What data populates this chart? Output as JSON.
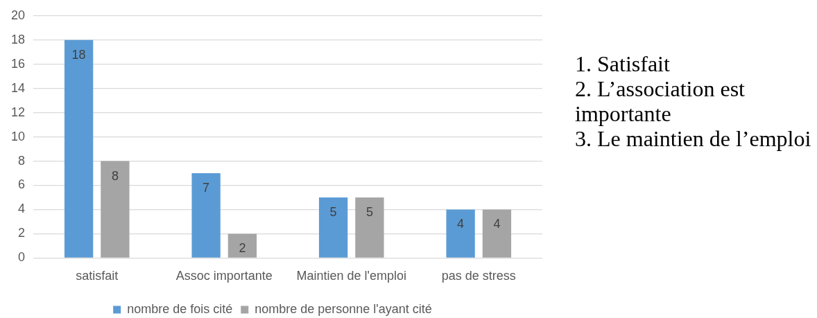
{
  "chart_data": {
    "type": "bar",
    "categories": [
      "satisfait",
      "Assoc importante",
      "Maintien de l'emploi",
      "pas de stress"
    ],
    "series": [
      {
        "name": "nombre de fois cité",
        "color": "#5b9bd5",
        "values": [
          18,
          7,
          5,
          4
        ]
      },
      {
        "name": "nombre de personne l'ayant cité",
        "color": "#a5a5a5",
        "values": [
          8,
          2,
          5,
          4
        ]
      }
    ],
    "ylim": [
      0,
      20
    ],
    "yticks": [
      0,
      2,
      4,
      6,
      8,
      10,
      12,
      14,
      16,
      18,
      20
    ],
    "grid": "y",
    "legend": "bottom",
    "data_labels": true,
    "annotations": [
      "1. Satisfait",
      "2. L’association est importante",
      "3. Le maintien de l’emploi"
    ]
  }
}
